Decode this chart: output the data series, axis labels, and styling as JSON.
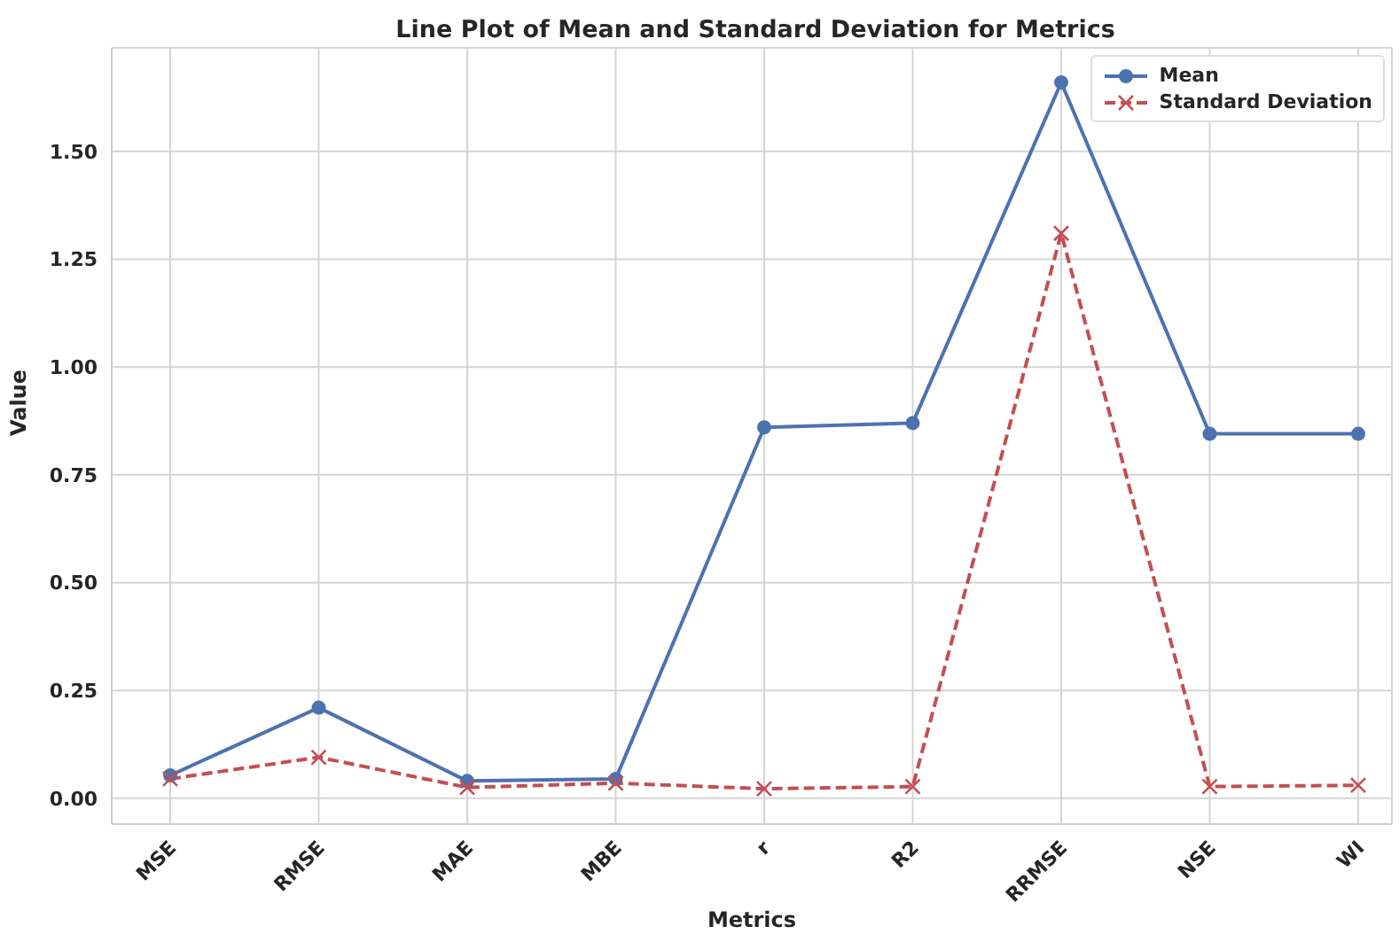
{
  "chart_data": {
    "type": "line",
    "title": "Line Plot of Mean and Standard Deviation for Metrics",
    "xlabel": "Metrics",
    "ylabel": "Value",
    "categories": [
      "MSE",
      "RMSE",
      "MAE",
      "MBE",
      "r",
      "R2",
      "RRMSE",
      "NSE",
      "WI"
    ],
    "series": [
      {
        "name": "Mean",
        "color": "#4c72b0",
        "marker": "circle",
        "line_style": "solid",
        "values": [
          0.053,
          0.21,
          0.04,
          0.045,
          0.86,
          0.87,
          1.66,
          0.845,
          0.845
        ]
      },
      {
        "name": "Standard Deviation",
        "color": "#c44e52",
        "marker": "cross",
        "line_style": "dashed",
        "values": [
          0.045,
          0.095,
          0.025,
          0.035,
          0.022,
          0.027,
          1.31,
          0.027,
          0.03
        ]
      }
    ],
    "ylim": [
      -0.06,
      1.74
    ],
    "yticks": [
      {
        "value": 0,
        "label": "0.00"
      },
      {
        "value": 0.25,
        "label": "0.25"
      },
      {
        "value": 0.5,
        "label": "0.50"
      },
      {
        "value": 0.75,
        "label": "0.75"
      },
      {
        "value": 1,
        "label": "1.00"
      },
      {
        "value": 1.25,
        "label": "1.25"
      },
      {
        "value": 1.5,
        "label": "1.50"
      }
    ],
    "grid": true,
    "legend": "top right"
  }
}
